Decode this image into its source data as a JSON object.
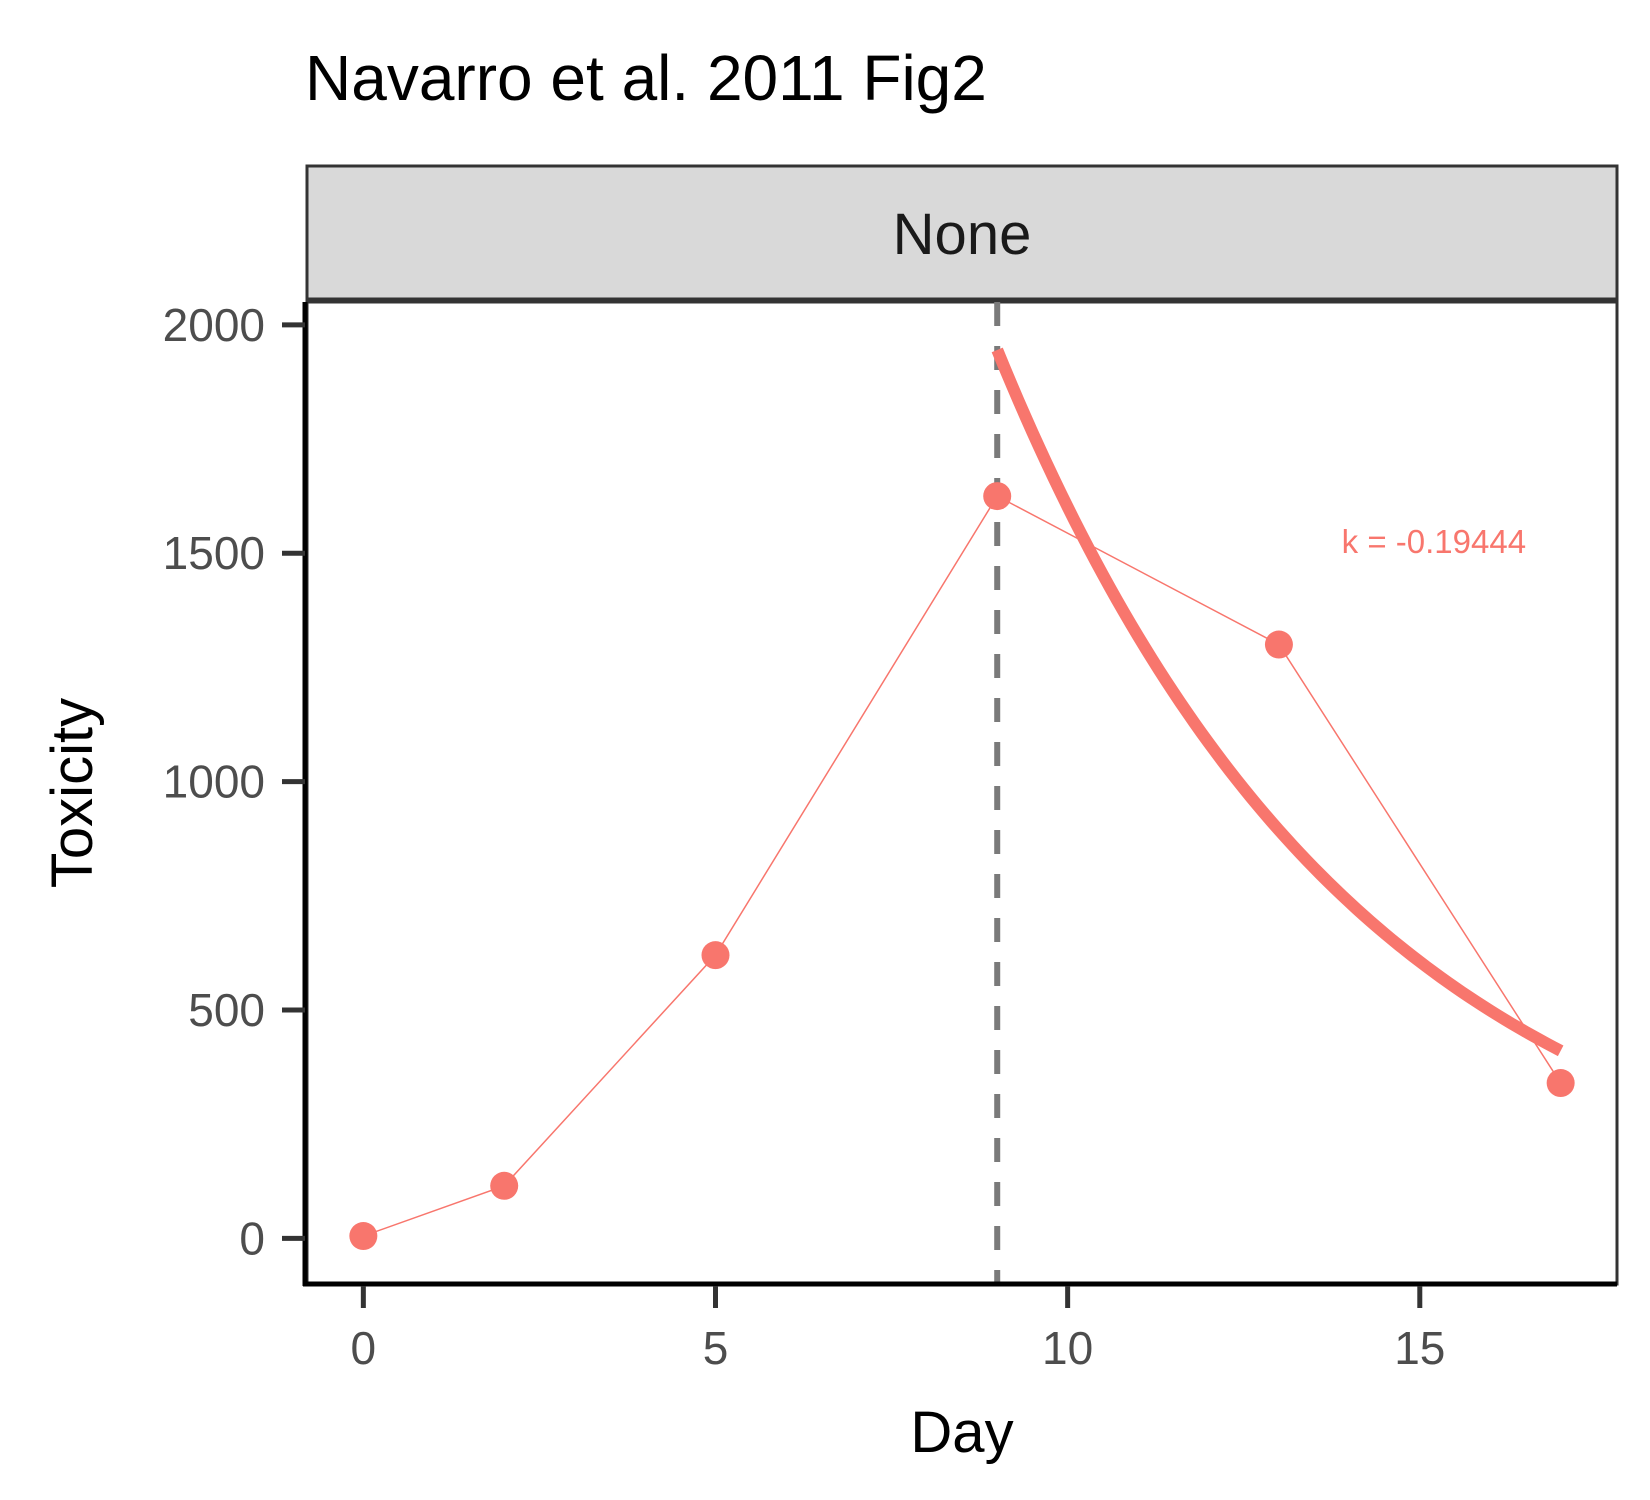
{
  "chart_data": {
    "type": "line",
    "title": "Navarro et al. 2011 Fig2",
    "facet_label": "None",
    "xlabel": "Day",
    "ylabel": "Toxicity",
    "xlim": [
      -0.8,
      17.8
    ],
    "ylim": [
      -100,
      2050
    ],
    "x_ticks": [
      0,
      5,
      10,
      15
    ],
    "y_ticks": [
      0,
      500,
      1000,
      1500,
      2000
    ],
    "grid": false,
    "legend": "none",
    "vline_x": 9,
    "series": [
      {
        "x": [
          0,
          2,
          5,
          9,
          13,
          17
        ],
        "y": [
          5,
          115,
          620,
          1625,
          1300,
          340
        ],
        "color": "#F8766D"
      }
    ],
    "fit": {
      "x_start": 9,
      "x_end": 17,
      "y_start": 1945,
      "k": -0.19444,
      "color": "#F8766D"
    },
    "annotation": {
      "text": "k = -0.19444",
      "x": 15.2,
      "y": 1525,
      "color": "#F8766D"
    }
  }
}
